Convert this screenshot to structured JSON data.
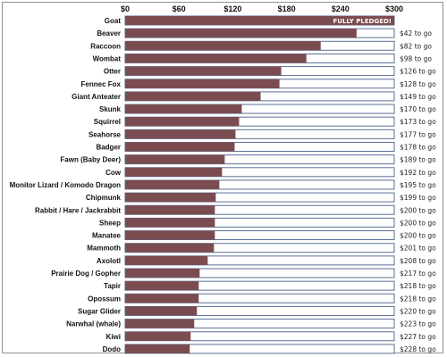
{
  "chart_data": {
    "type": "bar",
    "orientation": "horizontal",
    "xlim": [
      0,
      300
    ],
    "x_ticks": [
      "$0",
      "$60",
      "$120",
      "$180",
      "$240",
      "$300"
    ],
    "x_tick_values": [
      0,
      60,
      120,
      180,
      240,
      300
    ],
    "categories": [
      "Goat",
      "Beaver",
      "Raccoon",
      "Wombat",
      "Otter",
      "Fennec Fox",
      "Giant Anteater",
      "Skunk",
      "Squirrel",
      "Seahorse",
      "Badger",
      "Fawn (Baby Deer)",
      "Cow",
      "Monitor Lizard / Komodo Dragon",
      "Chipmunk",
      "Rabbit / Hare / Jackrabbit",
      "Sheep",
      "Manatee",
      "Mammoth",
      "Axolotl",
      "Prairie Dog / Gopher",
      "Tapir",
      "Opossum",
      "Sugar Glider",
      "Narwhal (whale)",
      "Kiwi",
      "Dodo"
    ],
    "values": [
      300,
      258,
      218,
      202,
      174,
      172,
      151,
      130,
      127,
      123,
      122,
      111,
      108,
      105,
      101,
      100,
      100,
      100,
      99,
      92,
      83,
      82,
      82,
      80,
      77,
      73,
      72
    ],
    "goal": 300,
    "remaining_labels": [
      "",
      "$42 to go",
      "$82 to go",
      "$98 to go",
      "$126 to go",
      "$128 to go",
      "$149 to go",
      "$170 to go",
      "$173 to go",
      "$177 to go",
      "$178 to go",
      "$189 to go",
      "$192 to go",
      "$195 to go",
      "$199 to go",
      "$200 to go",
      "$200 to go",
      "$200 to go",
      "$201 to go",
      "$208 to go",
      "$217 to go",
      "$218 to go",
      "$218 to go",
      "$220 to go",
      "$223 to go",
      "$227 to go",
      "$228 to go"
    ],
    "bar_labels": [
      "FULLY PLEDGED!",
      "",
      "",
      "",
      "",
      "",
      "",
      "",
      "",
      "",
      "",
      "",
      "",
      "",
      "",
      "",
      "",
      "",
      "",
      "",
      "",
      "",
      "",
      "",
      "",
      "",
      ""
    ],
    "title": "",
    "xlabel": "",
    "ylabel": "",
    "grid": false,
    "legend": "none",
    "colors": {
      "bar": "#7b4c4f",
      "track_border": "#5a6f9a",
      "track_fill": "#ffffff"
    }
  }
}
